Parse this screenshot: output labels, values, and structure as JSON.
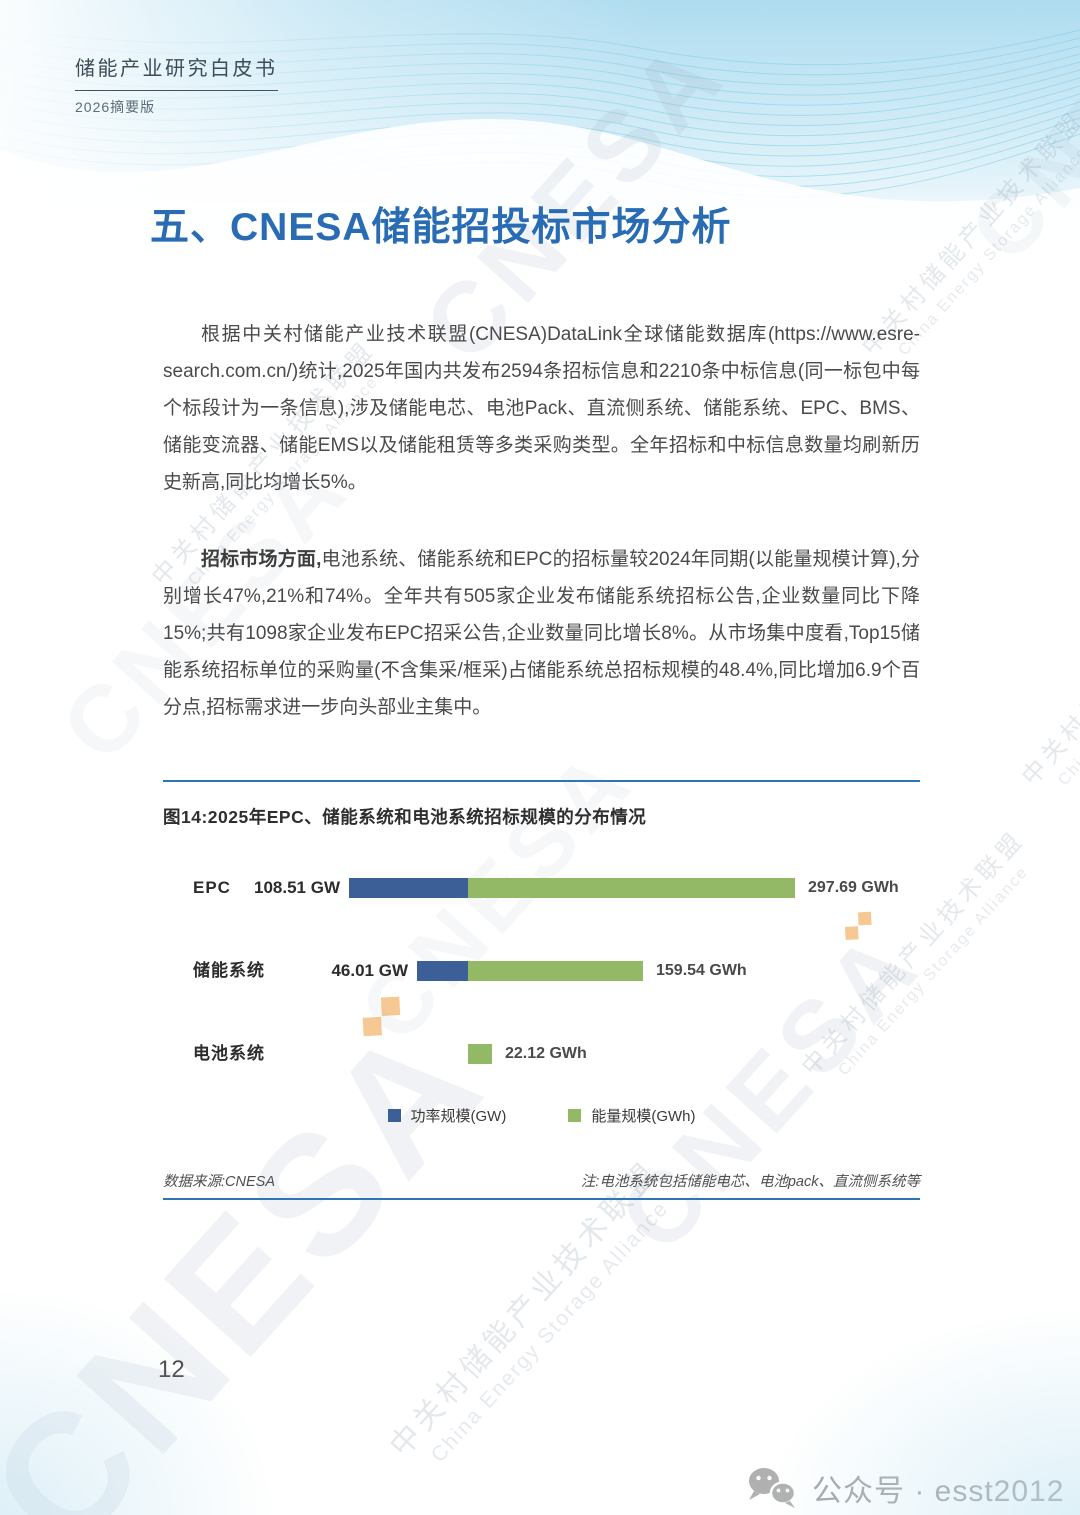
{
  "header": {
    "title": "储能产业研究白皮书",
    "subtitle": "2026摘要版"
  },
  "section": {
    "title": "五、CNESA储能招投标市场分析"
  },
  "body": {
    "p1": "根据中关村储能产业技术联盟(CNESA)DataLink全球储能数据库(https://www.esre-search.com.cn/)统计,2025年国内共发布2594条招标信息和2210条中标信息(同一标包中每个标段计为一条信息),涉及储能电芯、电池Pack、直流侧系统、储能系统、EPC、BMS、储能变流器、储能EMS以及储能租赁等多类采购类型。全年招标和中标信息数量均刷新历史新高,同比均增长5%。",
    "p2_lead": "招标市场方面,",
    "p2_rest": "电池系统、储能系统和EPC的招标量较2024年同期(以能量规模计算),分别增长47%,21%和74%。全年共有505家企业发布储能系统招标公告,企业数量同比下降15%;共有1098家企业发布EPC招采公告,企业数量同比增长8%。从市场集中度看,Top15储能系统招标单位的采购量(不含集采/框采)占储能系统总招标规模的48.4%,同比增加6.9个百分点,招标需求进一步向头部业主集中。"
  },
  "figure": {
    "title": "图14:2025年EPC、储能系统和电池系统招标规模的分布情况",
    "source": "数据来源:CNESA",
    "note": "注:电池系统包括储能电芯、电池pack、直流侧系统等"
  },
  "footer": {
    "page_number": "12",
    "wechat_label": "公众号 · esst2012"
  },
  "watermark": {
    "brand": "CNESA",
    "org_cn": "中关村储能产业技术联盟",
    "org_en": "China Energy Storage Alliance"
  },
  "chart_data": {
    "type": "bar",
    "orientation": "horizontal-diverging-stacked",
    "title": "图14:2025年EPC、储能系统和电池系统招标规模的分布情况",
    "categories": [
      "EPC",
      "储能系统",
      "电池系统"
    ],
    "series": [
      {
        "name": "功率规模(GW)",
        "unit": "GW",
        "color": "#3b5f96",
        "values": [
          108.51,
          46.01,
          null
        ]
      },
      {
        "name": "能量规模(GWh)",
        "unit": "GWh",
        "color": "#93b866",
        "values": [
          297.69,
          159.54,
          22.12
        ]
      }
    ],
    "value_labels": {
      "gw": [
        "108.51 GW",
        "46.01 GW",
        null
      ],
      "gwh": [
        "297.69 GWh",
        "159.54 GWh",
        "22.12 GWh"
      ]
    },
    "legend": [
      "功率规模(GW)",
      "能量规模(GWh)"
    ],
    "legend_position": "bottom",
    "grid": false,
    "axis_labels_shown": false
  }
}
